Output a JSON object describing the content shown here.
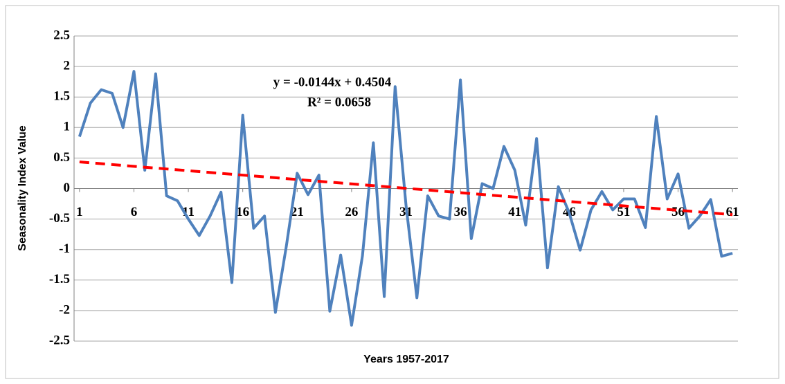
{
  "chart_data": {
    "type": "line",
    "y_label": "Seasonality Index Value",
    "x_label": "Years 1957-2017",
    "x": [
      1,
      2,
      3,
      4,
      5,
      6,
      7,
      8,
      9,
      10,
      11,
      12,
      13,
      14,
      15,
      16,
      17,
      18,
      19,
      20,
      21,
      22,
      23,
      24,
      25,
      26,
      27,
      28,
      29,
      30,
      31,
      32,
      33,
      34,
      35,
      36,
      37,
      38,
      39,
      40,
      41,
      42,
      43,
      44,
      45,
      46,
      47,
      48,
      49,
      50,
      51,
      52,
      53,
      54,
      55,
      56,
      57,
      58,
      59,
      60,
      61
    ],
    "series": [
      {
        "color": "#4f81bd",
        "values": [
          0.85,
          1.4,
          1.62,
          1.56,
          1.0,
          1.92,
          0.3,
          1.88,
          -0.12,
          -0.2,
          -0.5,
          -0.77,
          -0.45,
          -0.06,
          -1.54,
          1.2,
          -0.65,
          -0.45,
          -2.03,
          -0.95,
          0.25,
          -0.1,
          0.22,
          -2.01,
          -1.09,
          -2.24,
          -1.1,
          0.75,
          -1.77,
          1.67,
          -0.27,
          -1.79,
          -0.12,
          -0.45,
          -0.5,
          1.78,
          -0.82,
          0.08,
          0.0,
          0.69,
          0.3,
          -0.6,
          0.82,
          -1.3,
          0.03,
          -0.4,
          -1.01,
          -0.35,
          -0.05,
          -0.35,
          -0.17,
          -0.17,
          -0.64,
          1.18,
          -0.17,
          0.24,
          -0.65,
          -0.45,
          -0.18,
          -1.11,
          -1.06
        ]
      }
    ],
    "trendline": {
      "color": "#ff0000",
      "slope": -0.0144,
      "intercept": 0.4504,
      "equation": "y = -0.0144x + 0.4504",
      "r2_label": "R² = 0.0658"
    },
    "xlim": [
      0.5,
      61.5
    ],
    "xticks": [
      1,
      6,
      11,
      16,
      21,
      26,
      31,
      36,
      41,
      46,
      51,
      56,
      61
    ],
    "ylim": [
      -2.5,
      2.5
    ],
    "yticks": [
      -2.5,
      -2,
      -1.5,
      -1,
      -0.5,
      0,
      0.5,
      1,
      1.5,
      2,
      2.5
    ],
    "grid": true
  }
}
